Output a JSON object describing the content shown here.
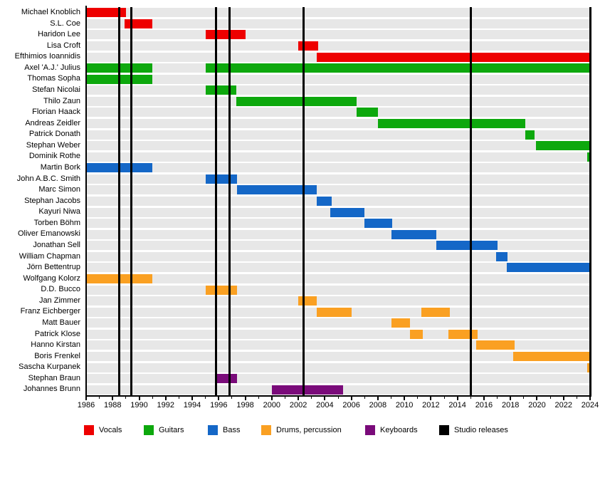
{
  "chart_data": {
    "type": "bar",
    "subtype": "gantt-timeline-band-members",
    "title": "",
    "xlabel": "",
    "ylabel": "",
    "axis": {
      "x_min": 1986,
      "x_max": 2024,
      "tick_label_step": 2,
      "minor_tick_step": 1,
      "tick_labels": [
        "1986",
        "1988",
        "1990",
        "1992",
        "1994",
        "1996",
        "1998",
        "2000",
        "2002",
        "2004",
        "2006",
        "2008",
        "2010",
        "2012",
        "2014",
        "2016",
        "2018",
        "2020",
        "2022",
        "2024"
      ],
      "grid": "alternating-row-bands"
    },
    "colors": {
      "vocals": "#ee0000",
      "guitars": "#0da80d",
      "bass": "#1467c7",
      "drums": "#faa022",
      "keyboards": "#7a0b7a",
      "studio": "#000000",
      "band": "#e7e7e7",
      "background": "#ffffff"
    },
    "rows": [
      {
        "name": "Michael Knoblich",
        "role": "vocals",
        "periods": [
          [
            1986,
            1989
          ]
        ]
      },
      {
        "name": "S.L. Coe",
        "role": "vocals",
        "periods": [
          [
            1988.9,
            1991
          ]
        ]
      },
      {
        "name": "Haridon Lee",
        "role": "vocals",
        "periods": [
          [
            1995,
            1998
          ]
        ]
      },
      {
        "name": "Lisa Croft",
        "role": "vocals",
        "periods": [
          [
            2002,
            2003.5
          ]
        ]
      },
      {
        "name": "Efthimios Ioannidis",
        "role": "vocals",
        "periods": [
          [
            2003.4,
            2024
          ]
        ]
      },
      {
        "name": "Axel 'A.J.' Julius",
        "role": "guitars",
        "periods": [
          [
            1986,
            1991
          ],
          [
            1995,
            2024
          ]
        ]
      },
      {
        "name": "Thomas Sopha",
        "role": "guitars",
        "periods": [
          [
            1986,
            1991
          ]
        ]
      },
      {
        "name": "Stefan Nicolai",
        "role": "guitars",
        "periods": [
          [
            1995,
            1997.3
          ]
        ]
      },
      {
        "name": "Thilo Zaun",
        "role": "guitars",
        "periods": [
          [
            1997.3,
            2006.4
          ]
        ]
      },
      {
        "name": "Florian Haack",
        "role": "guitars",
        "periods": [
          [
            2006.4,
            2008
          ]
        ]
      },
      {
        "name": "Andreas Zeidler",
        "role": "guitars",
        "periods": [
          [
            2008,
            2019.1
          ]
        ]
      },
      {
        "name": "Patrick Donath",
        "role": "guitars",
        "periods": [
          [
            2019.1,
            2019.8
          ]
        ]
      },
      {
        "name": "Stephan Weber",
        "role": "guitars",
        "periods": [
          [
            2019.9,
            2024
          ]
        ]
      },
      {
        "name": "Dominik Rothe",
        "role": "guitars",
        "periods": [
          [
            2023.8,
            2024
          ]
        ]
      },
      {
        "name": "Martin Bork",
        "role": "bass",
        "periods": [
          [
            1986,
            1991
          ]
        ]
      },
      {
        "name": "John A.B.C. Smith",
        "role": "bass",
        "periods": [
          [
            1995,
            1997.4
          ]
        ]
      },
      {
        "name": "Marc Simon",
        "role": "bass",
        "periods": [
          [
            1997.4,
            2003.4
          ]
        ]
      },
      {
        "name": "Stephan Jacobs",
        "role": "bass",
        "periods": [
          [
            2003.4,
            2004.5
          ]
        ]
      },
      {
        "name": "Kayuri Niwa",
        "role": "bass",
        "periods": [
          [
            2004.4,
            2007
          ]
        ]
      },
      {
        "name": "Torben Böhm",
        "role": "bass",
        "periods": [
          [
            2007,
            2009.1
          ]
        ]
      },
      {
        "name": "Oliver Emanowski",
        "role": "bass",
        "periods": [
          [
            2009,
            2012.4
          ]
        ]
      },
      {
        "name": "Jonathan Sell",
        "role": "bass",
        "periods": [
          [
            2012.4,
            2017
          ]
        ]
      },
      {
        "name": "William Chapman",
        "role": "bass",
        "periods": [
          [
            2016.9,
            2017.8
          ]
        ]
      },
      {
        "name": "Jörn Bettentrup",
        "role": "bass",
        "periods": [
          [
            2017.7,
            2024
          ]
        ]
      },
      {
        "name": "Wolfgang Kolorz",
        "role": "drums",
        "periods": [
          [
            1986,
            1991
          ]
        ]
      },
      {
        "name": "D.D. Bucco",
        "role": "drums",
        "periods": [
          [
            1995,
            1997.4
          ]
        ]
      },
      {
        "name": "Jan Zimmer",
        "role": "drums",
        "periods": [
          [
            2002,
            2003.4
          ]
        ]
      },
      {
        "name": "Franz Eichberger",
        "role": "drums",
        "periods": [
          [
            2003.4,
            2006
          ],
          [
            2011.3,
            2013.4
          ]
        ]
      },
      {
        "name": "Matt Bauer",
        "role": "drums",
        "periods": [
          [
            2009,
            2010.4
          ]
        ]
      },
      {
        "name": "Patrick Klose",
        "role": "drums",
        "periods": [
          [
            2010.4,
            2011.4
          ],
          [
            2013.3,
            2015.5
          ]
        ]
      },
      {
        "name": "Hanno Kirstan",
        "role": "drums",
        "periods": [
          [
            2015.4,
            2018.3
          ]
        ]
      },
      {
        "name": "Boris Frenkel",
        "role": "drums",
        "periods": [
          [
            2018.2,
            2024
          ]
        ]
      },
      {
        "name": "Sascha Kurpanek",
        "role": "drums",
        "periods": [
          [
            2023.8,
            2024
          ]
        ]
      },
      {
        "name": "Stephan Braun",
        "role": "keyboards",
        "periods": [
          [
            1995.9,
            1997.4
          ]
        ]
      },
      {
        "name": "Johannes Brunn",
        "role": "keyboards",
        "periods": [
          [
            2000,
            2005.4
          ]
        ]
      }
    ],
    "studio_releases_years": [
      1988.5,
      1989.4,
      1995.8,
      1996.8,
      2002.4,
      2015,
      2024
    ],
    "legend_position": "bottom"
  },
  "legend": {
    "items": [
      {
        "label": "Vocals",
        "role": "vocals"
      },
      {
        "label": "Guitars",
        "role": "guitars"
      },
      {
        "label": "Bass",
        "role": "bass"
      },
      {
        "label": "Drums, percussion",
        "role": "drums"
      },
      {
        "label": "Keyboards",
        "role": "keyboards"
      },
      {
        "label": "Studio releases",
        "role": "studio"
      }
    ]
  }
}
